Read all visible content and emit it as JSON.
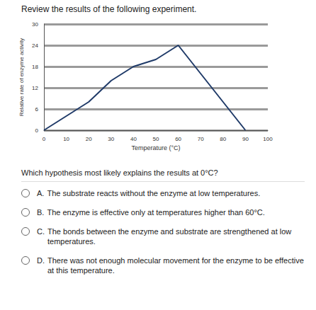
{
  "header": {
    "title": "Review the results of the following experiment."
  },
  "chart_data": {
    "type": "line",
    "x": [
      0,
      10,
      20,
      30,
      40,
      50,
      60,
      70,
      80,
      90
    ],
    "values": [
      0,
      4,
      8,
      14,
      18,
      20,
      24,
      16,
      8,
      0
    ],
    "color": "#1f3a68",
    "xlim": [
      0,
      100
    ],
    "xticks": [
      0,
      10,
      20,
      30,
      40,
      50,
      60,
      70,
      80,
      90,
      100
    ],
    "ylim": [
      0,
      30
    ],
    "yticks": [
      0,
      6,
      12,
      18,
      24,
      30
    ],
    "x_label": "Temperature (°C)",
    "y_label": "Relative rate of enzyme activity",
    "grid": true
  },
  "question": {
    "text": "Which hypothesis most likely explains the results at 0°C?",
    "options": [
      {
        "letter": "A.",
        "text": "The substrate reacts without the enzyme at low temperatures."
      },
      {
        "letter": "B.",
        "text": "The enzyme is effective only at temperatures higher than 60°C."
      },
      {
        "letter": "C.",
        "text": "The bonds between the enzyme and substrate are strengthened at low temperatures."
      },
      {
        "letter": "D.",
        "text": "There was not enough molecular movement for the enzyme to be effective at this temperature."
      }
    ]
  }
}
